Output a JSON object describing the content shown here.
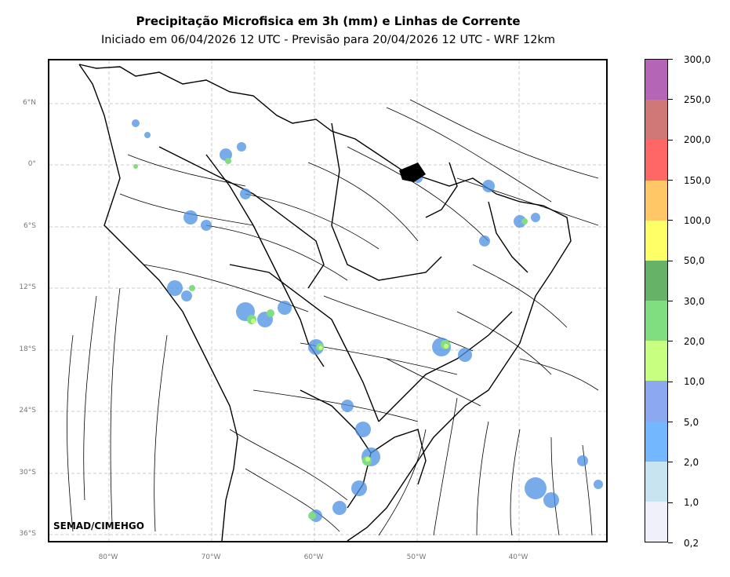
{
  "header": {
    "title": "Precipitação Microfisica em 3h (mm) e Linhas de Corrente",
    "subtitle": "Iniciado em 06/04/2026 12 UTC - Previsão para 20/04/2026 12 UTC - WRF 12km"
  },
  "credit": "SEMAD/CIMEHGO",
  "axes": {
    "lat_labels": [
      "6°N",
      "0°",
      "6°S",
      "12°S",
      "18°S",
      "24°S",
      "30°S",
      "36°S"
    ],
    "lon_labels": [
      "80°W",
      "70°W",
      "60°W",
      "50°W",
      "40°W"
    ]
  },
  "colorbar": {
    "labels": [
      "300,0",
      "250,0",
      "200,0",
      "150,0",
      "100,0",
      "50,0",
      "30,0",
      "20,0",
      "10,0",
      "5,0",
      "2,0",
      "1,0",
      "0,2"
    ],
    "colors": [
      "#b565b5",
      "#d07878",
      "#ff6666",
      "#ffc766",
      "#ffff66",
      "#66b266",
      "#80dd80",
      "#c8ff80",
      "#8ca8f0",
      "#73b8ff",
      "#c8e4f0",
      "#f0f0fa"
    ]
  },
  "colors": {
    "rain_light": "#4a90e2",
    "rain_mid": "#80dd80",
    "rain_heavy": "#c8ff80",
    "grid": "#bbbbbb"
  }
}
